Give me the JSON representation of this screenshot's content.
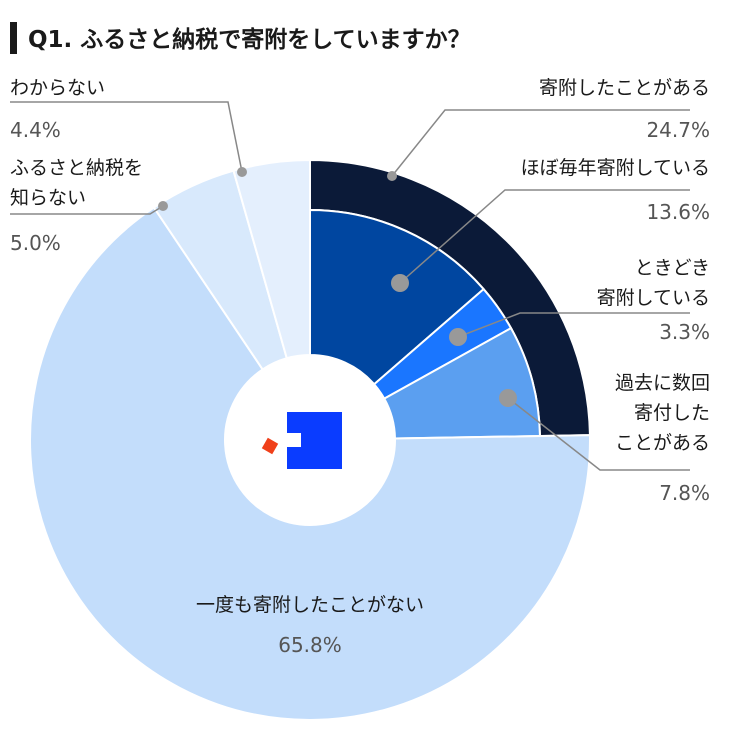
{
  "chart_data": {
    "type": "pie",
    "title": "Q1. ふるさと納税で寄附をしていますか？",
    "categories": [
      "寄附したことがある",
      "一度も寄附したことがない",
      "ふるさと納税を\n知らない",
      "わからない"
    ],
    "values": [
      24.7,
      65.8,
      5.0,
      4.4
    ],
    "value_labels": [
      "24.7%",
      "65.8%",
      "5.0%",
      "4.4%"
    ],
    "colors": [
      "#0b1a38",
      "#c3ddfb",
      "#d8e9fc",
      "#e4effd"
    ],
    "breakdown": {
      "categories": [
        "ほぼ毎年寄附している",
        "ときどき\n寄附している",
        "過去に数回\n寄付した\nことがある"
      ],
      "values": [
        13.6,
        3.3,
        7.8
      ],
      "value_labels": [
        "13.6%",
        "3.3%",
        "7.8%"
      ],
      "colors": [
        "#0046a0",
        "#1a76ff",
        "#5b9ff0"
      ]
    }
  }
}
